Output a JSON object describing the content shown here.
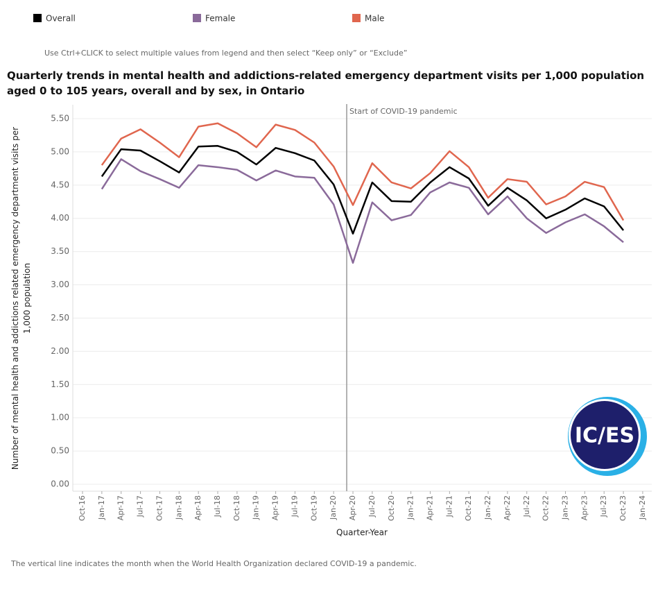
{
  "chart_data": {
    "type": "line",
    "instruction": "Use Ctrl+CLICK to select multiple values from legend and then select “Keep only” or “Exclude”",
    "title": "Quarterly trends in mental health and addictions-related emergency department visits per 1,000 population aged 0 to 105 years, overall and by sex, in Ontario",
    "y_label": "Number of mental health and addictions related emergency department visits per 1,000 population",
    "x_label": "Quarter-Year",
    "footnote": "The vertical line indicates the month when the World Health Organization declared COVID-19 a pandemic.",
    "logo": "IC/ES",
    "annotation": {
      "text": "Start of COVID-19 pandemic",
      "x": "Apr-20"
    },
    "grid": true,
    "categories": [
      "Oct-16",
      "Jan-17",
      "Apr-17",
      "Jul-17",
      "Oct-17",
      "Jan-18",
      "Apr-18",
      "Jul-18",
      "Oct-18",
      "Jan-19",
      "Apr-19",
      "Jul-19",
      "Oct-19",
      "Jan-20",
      "Apr-20",
      "Jul-20",
      "Oct-20",
      "Jan-21",
      "Apr-21",
      "Jul-21",
      "Oct-21",
      "Jan-22",
      "Apr-22",
      "Jul-22",
      "Oct-22",
      "Jan-23",
      "Apr-23",
      "Jul-23",
      "Oct-23",
      "Jan-24"
    ],
    "series": [
      {
        "name": "Overall",
        "color": "#000000",
        "values": [
          null,
          4.63,
          5.04,
          5.02,
          4.86,
          4.69,
          5.08,
          5.09,
          5.0,
          4.81,
          5.06,
          4.98,
          4.87,
          4.51,
          3.77,
          4.54,
          4.26,
          4.25,
          4.54,
          4.77,
          4.6,
          4.19,
          4.46,
          4.27,
          4.0,
          4.13,
          4.3,
          4.18,
          3.82,
          null
        ]
      },
      {
        "name": "Female",
        "color": "#8a6a9a",
        "values": [
          null,
          4.44,
          4.89,
          4.71,
          4.59,
          4.46,
          4.8,
          4.77,
          4.73,
          4.57,
          4.72,
          4.63,
          4.61,
          4.21,
          3.33,
          4.24,
          3.97,
          4.05,
          4.39,
          4.54,
          4.46,
          4.06,
          4.33,
          4.0,
          3.78,
          3.94,
          4.06,
          3.88,
          3.64,
          null
        ]
      },
      {
        "name": "Male",
        "color": "#e0664e",
        "values": [
          null,
          4.8,
          5.2,
          5.34,
          5.14,
          4.92,
          5.38,
          5.43,
          5.28,
          5.07,
          5.41,
          5.33,
          5.14,
          4.78,
          4.2,
          4.83,
          4.54,
          4.45,
          4.68,
          5.01,
          4.77,
          4.31,
          4.59,
          4.55,
          4.21,
          4.33,
          4.55,
          4.47,
          3.97,
          null
        ]
      }
    ],
    "ylim": [
      0,
      5.5
    ],
    "yticks": [
      {
        "value": 0,
        "label": "0.00"
      },
      {
        "value": 0.5,
        "label": "0.50"
      },
      {
        "value": 1,
        "label": "1.00"
      },
      {
        "value": 1.5,
        "label": "1.50"
      },
      {
        "value": 2,
        "label": "2.00"
      },
      {
        "value": 2.5,
        "label": "2.50"
      },
      {
        "value": 3,
        "label": "3.00"
      },
      {
        "value": 3.5,
        "label": "3.50"
      },
      {
        "value": 4,
        "label": "4.00"
      },
      {
        "value": 4.5,
        "label": "4.50"
      },
      {
        "value": 5,
        "label": "5.00"
      },
      {
        "value": 5.5,
        "label": "5.50"
      }
    ]
  }
}
